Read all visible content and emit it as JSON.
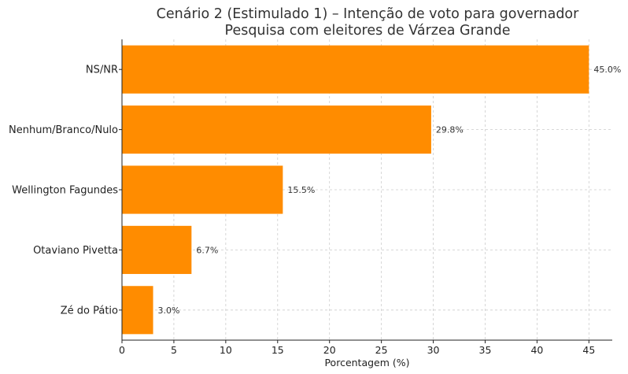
{
  "chart_data": {
    "type": "bar",
    "orientation": "horizontal",
    "title": "Cenário 2 (Estimulado 1) – Intenção de voto para governador",
    "subtitle": "Pesquisa com eleitores de Várzea Grande",
    "categories": [
      "NS/NR",
      "Nenhum/Branco/Nulo",
      "Wellington Fagundes",
      "Otaviano Pivetta",
      "Zé do Pátio"
    ],
    "values": [
      45.0,
      29.8,
      15.5,
      6.7,
      3.0
    ],
    "data_labels": [
      "45.0%",
      "29.8%",
      "15.5%",
      "6.7%",
      "3.0%"
    ],
    "xlabel": "Porcentagem (%)",
    "ylabel": "",
    "xlim": [
      0,
      47.25
    ],
    "xticks": [
      0,
      5,
      10,
      15,
      20,
      25,
      30,
      35,
      40,
      45
    ],
    "xtick_labels": [
      "0",
      "5",
      "10",
      "15",
      "20",
      "25",
      "30",
      "35",
      "40",
      "45"
    ],
    "grid": true,
    "bar_color": "#ff8c00"
  }
}
